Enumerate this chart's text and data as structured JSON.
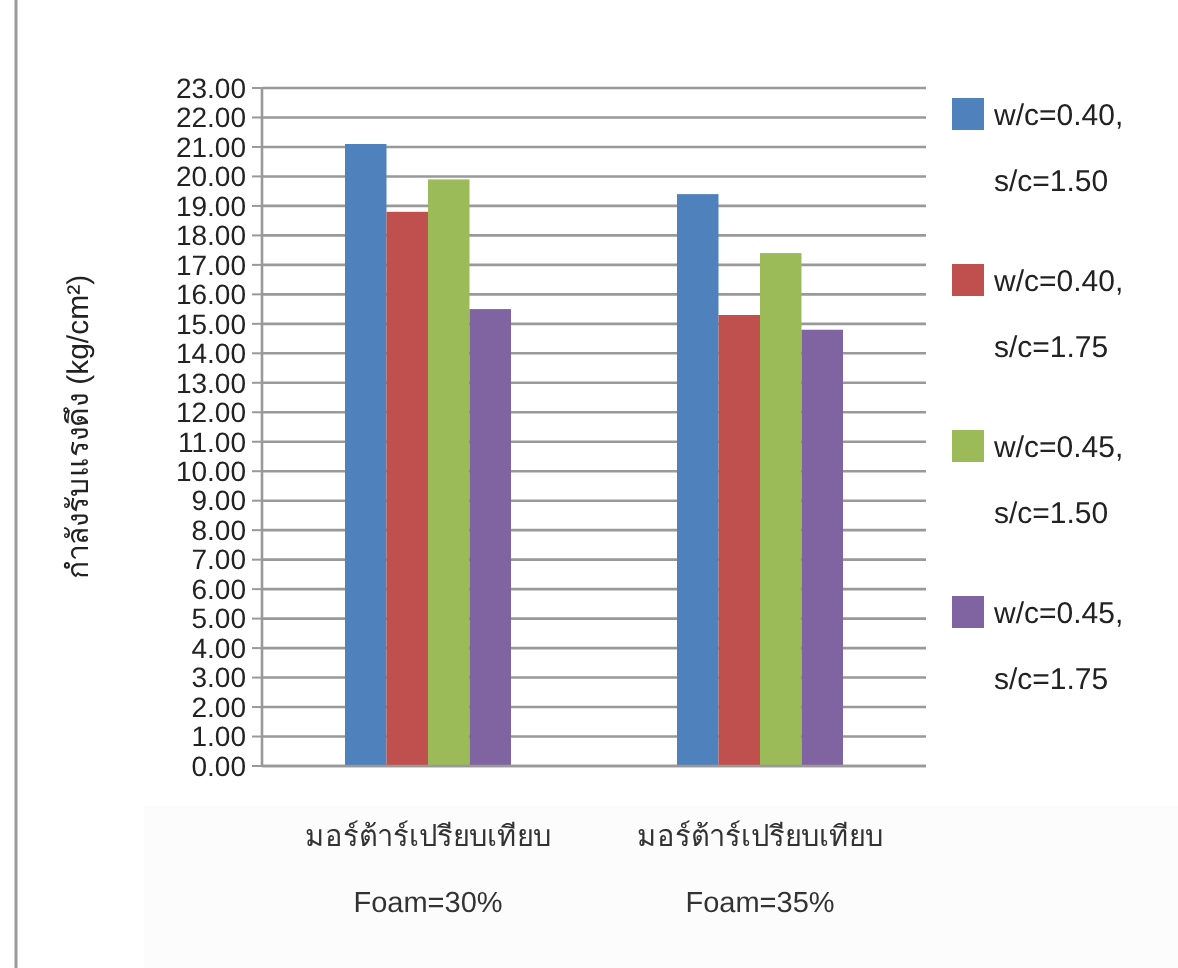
{
  "chart_data": {
    "type": "bar",
    "ylabel": "กำลังรับแรงดึง (kg/cm²)",
    "categories": [
      "มอร์ต้าร์เปรียบเทียบ\nFoam=30%",
      "มอร์ต้าร์เปรียบเทียบ\nFoam=35%"
    ],
    "series": [
      {
        "name": "w/c=0.40,\ns/c=1.50",
        "color": "#4f81bd",
        "values": [
          21.1,
          19.4
        ]
      },
      {
        "name": "w/c=0.40,\ns/c=1.75",
        "color": "#c0504d",
        "values": [
          18.8,
          15.3
        ]
      },
      {
        "name": "w/c=0.45,\ns/c=1.50",
        "color": "#9bbb59",
        "values": [
          19.9,
          17.4
        ]
      },
      {
        "name": "w/c=0.45,\ns/c=1.75",
        "color": "#8064a2",
        "values": [
          15.5,
          14.8
        ]
      }
    ],
    "ylim": [
      0,
      23
    ],
    "yticks": [
      {
        "value": 0,
        "label": "0.00"
      },
      {
        "value": 1,
        "label": "1.00"
      },
      {
        "value": 2,
        "label": "2.00"
      },
      {
        "value": 3,
        "label": "3.00"
      },
      {
        "value": 4,
        "label": "4.00"
      },
      {
        "value": 5,
        "label": "5.00"
      },
      {
        "value": 6,
        "label": "6.00"
      },
      {
        "value": 7,
        "label": "7.00"
      },
      {
        "value": 8,
        "label": "8.00"
      },
      {
        "value": 9,
        "label": "9.00"
      },
      {
        "value": 10,
        "label": "10.00"
      },
      {
        "value": 11,
        "label": "11.00"
      },
      {
        "value": 12,
        "label": "12.00"
      },
      {
        "value": 13,
        "label": "13.00"
      },
      {
        "value": 14,
        "label": "14.00"
      },
      {
        "value": 15,
        "label": "15.00"
      },
      {
        "value": 16,
        "label": "16.00"
      },
      {
        "value": 17,
        "label": "17.00"
      },
      {
        "value": 18,
        "label": "18.00"
      },
      {
        "value": 19,
        "label": "19.00"
      },
      {
        "value": 20,
        "label": "20.00"
      },
      {
        "value": 21,
        "label": "21.00"
      },
      {
        "value": 22,
        "label": "22.00"
      },
      {
        "value": 23,
        "label": "23.00"
      }
    ],
    "grid": "y",
    "legend": "right"
  }
}
